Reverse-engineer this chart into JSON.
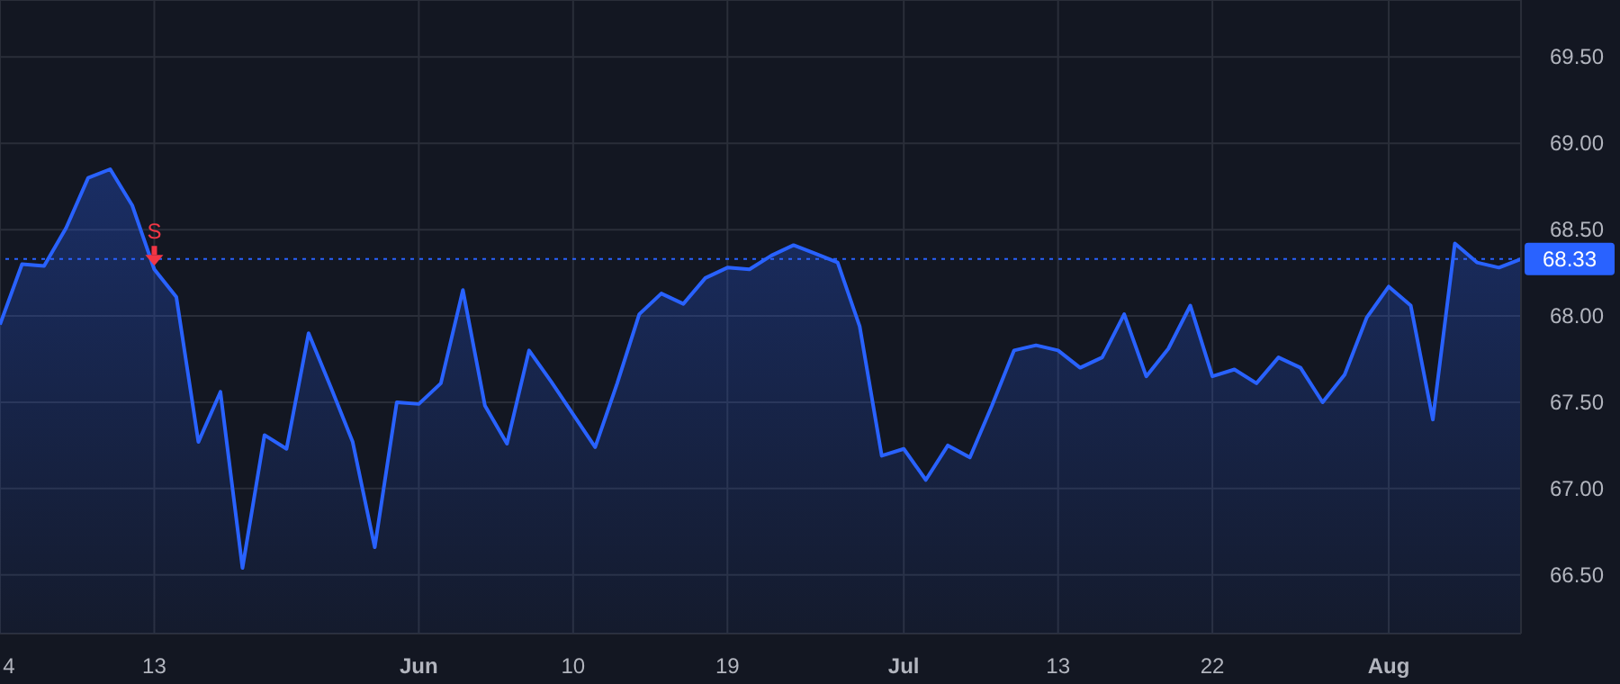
{
  "chart_data": {
    "type": "area",
    "categories": [
      "4",
      null,
      null,
      null,
      null,
      null,
      null,
      "13",
      null,
      null,
      null,
      null,
      null,
      null,
      null,
      null,
      null,
      null,
      null,
      "Jun",
      null,
      null,
      null,
      null,
      null,
      null,
      "10",
      null,
      null,
      null,
      null,
      null,
      null,
      "19",
      null,
      null,
      null,
      null,
      null,
      null,
      null,
      "Jul",
      null,
      null,
      null,
      null,
      null,
      null,
      "13",
      null,
      null,
      null,
      null,
      null,
      null,
      "22",
      null,
      null,
      null,
      null,
      null,
      null,
      null,
      "Aug",
      null,
      null,
      null,
      null,
      null,
      null
    ],
    "series": [
      {
        "color": "#2962ff",
        "values": [
          67.95,
          68.3,
          68.29,
          68.51,
          68.8,
          68.85,
          68.64,
          68.27,
          68.11,
          67.27,
          67.56,
          66.54,
          67.31,
          67.23,
          67.9,
          67.59,
          67.27,
          66.66,
          67.5,
          67.49,
          67.61,
          68.15,
          67.48,
          67.26,
          67.8,
          67.62,
          67.43,
          67.24,
          67.61,
          68.01,
          68.13,
          68.07,
          68.22,
          68.28,
          68.27,
          68.35,
          68.41,
          68.36,
          68.31,
          67.94,
          67.19,
          67.23,
          67.05,
          67.25,
          67.18,
          67.48,
          67.8,
          67.83,
          67.8,
          67.7,
          67.76,
          68.01,
          67.65,
          67.81,
          68.06,
          67.65,
          67.69,
          67.61,
          67.76,
          67.7,
          67.5,
          67.66,
          67.99,
          68.17,
          68.06,
          67.4,
          68.42,
          68.31,
          68.28,
          68.33
        ]
      }
    ],
    "ylim": [
      66.16,
      69.83
    ],
    "yticks": [
      {
        "value": 66.5,
        "label": "66.50"
      },
      {
        "value": 67,
        "label": "67.00"
      },
      {
        "value": 67.5,
        "label": "67.50"
      },
      {
        "value": 68,
        "label": "68.00"
      },
      {
        "value": 68.5,
        "label": "68.50"
      },
      {
        "value": 69,
        "label": "69.00"
      },
      {
        "value": 69.5,
        "label": "69.50"
      }
    ],
    "grid": true,
    "line_style": "solid",
    "marker": "none",
    "ref_lines": [
      {
        "axis": "y",
        "value": 68.33,
        "label": "68.33",
        "color": "#2962ff",
        "line_style": "dotted"
      }
    ],
    "annotations": [
      {
        "text": "S",
        "x": "13",
        "y": 68.27
      }
    ]
  }
}
